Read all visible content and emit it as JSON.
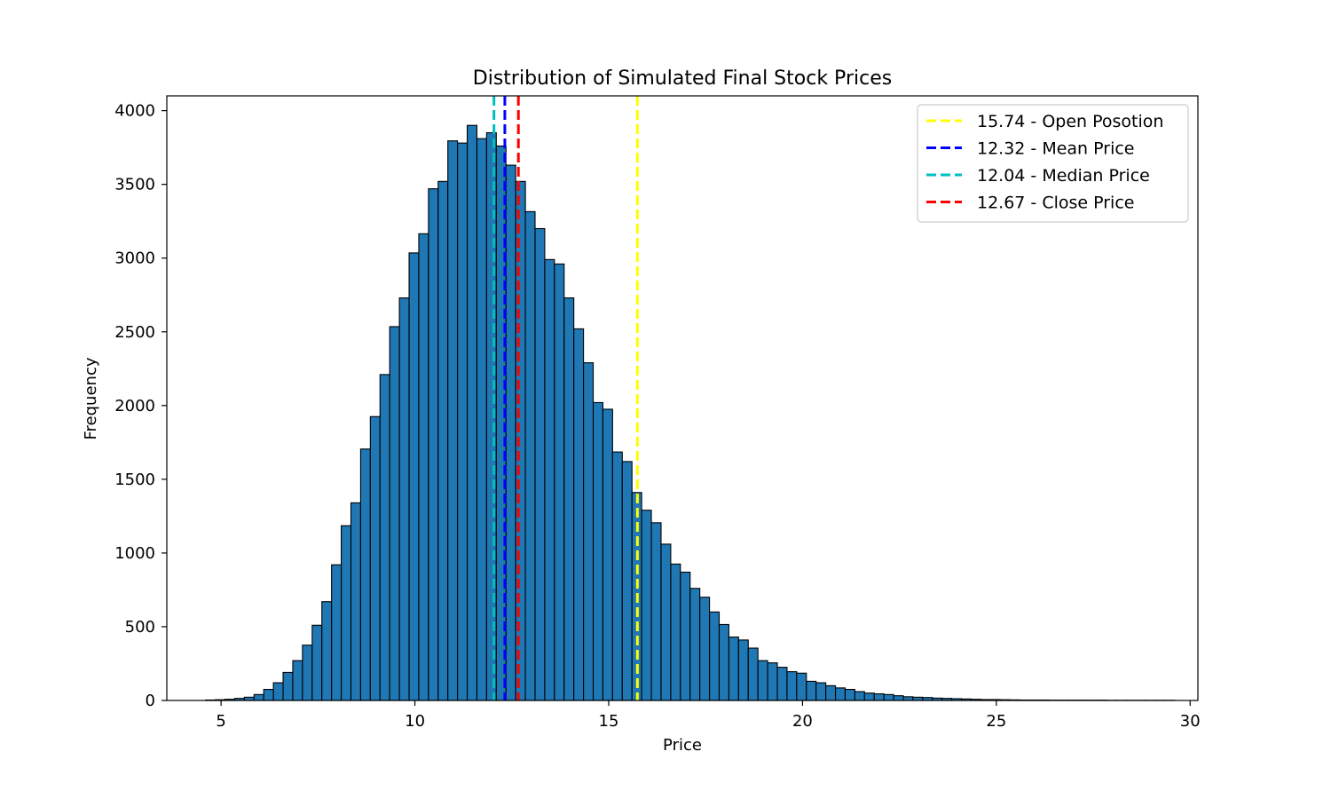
{
  "chart_data": {
    "type": "bar",
    "title": "Distribution of Simulated Final Stock Prices",
    "xlabel": "Price",
    "ylabel": "Frequency",
    "xlim": [
      3.6,
      30.2
    ],
    "ylim": [
      0,
      4100
    ],
    "xticks": [
      5,
      10,
      15,
      20,
      25,
      30
    ],
    "yticks": [
      0,
      500,
      1000,
      1500,
      2000,
      2500,
      3000,
      3500,
      4000
    ],
    "grid": false,
    "legend_position": "top-right",
    "bar_color": "#1f77b4",
    "bar_edge_color": "#000000",
    "bins": {
      "start": 4.6,
      "width": 0.25,
      "counts": [
        3,
        5,
        8,
        14,
        22,
        40,
        75,
        120,
        190,
        270,
        375,
        510,
        670,
        920,
        1185,
        1340,
        1705,
        1925,
        2210,
        2535,
        2730,
        3035,
        3165,
        3470,
        3520,
        3795,
        3780,
        3900,
        3810,
        3850,
        3760,
        3630,
        3520,
        3315,
        3200,
        2990,
        2960,
        2730,
        2520,
        2290,
        2020,
        1975,
        1685,
        1620,
        1410,
        1290,
        1205,
        1060,
        925,
        870,
        760,
        700,
        600,
        515,
        430,
        410,
        355,
        270,
        255,
        225,
        195,
        185,
        130,
        120,
        100,
        85,
        75,
        60,
        50,
        45,
        40,
        32,
        25,
        22,
        20,
        16,
        14,
        12,
        10,
        8,
        6,
        6,
        5,
        4,
        3,
        3,
        3,
        2,
        2,
        2,
        2,
        2,
        2,
        1,
        1,
        1,
        1,
        1,
        1,
        1
      ]
    },
    "lines": [
      {
        "label": "15.74 - Open Posotion",
        "x": 15.74,
        "color": "#ffff00"
      },
      {
        "label": "12.32 - Mean Price",
        "x": 12.32,
        "color": "#0000ff"
      },
      {
        "label": "12.04 - Median Price",
        "x": 12.04,
        "color": "#00bfbf"
      },
      {
        "label": "12.67 - Close Price",
        "x": 12.67,
        "color": "#ff0000"
      }
    ]
  }
}
